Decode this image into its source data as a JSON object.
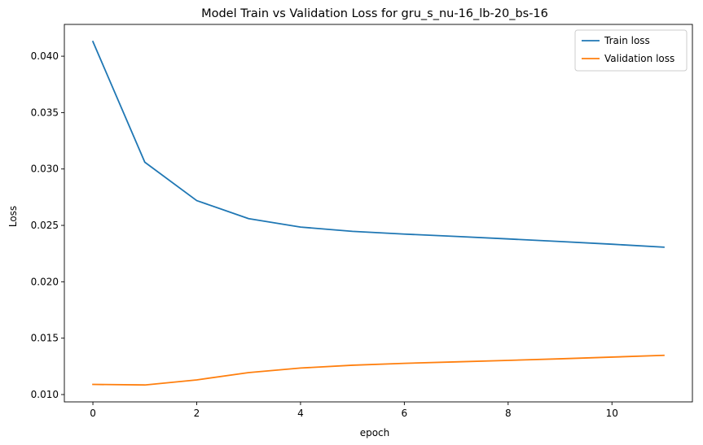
{
  "chart_data": {
    "type": "line",
    "title": "Model Train vs Validation Loss for gru_s_nu-16_lb-20_bs-16",
    "xlabel": "epoch",
    "ylabel": "Loss",
    "x": [
      0,
      1,
      2,
      3,
      4,
      5,
      6,
      7,
      8,
      9,
      10,
      11
    ],
    "xlim": [
      -0.55,
      11.55
    ],
    "ylim": [
      0.00935,
      0.04282
    ],
    "xticks": [
      0,
      2,
      4,
      6,
      8,
      10
    ],
    "xtick_labels": [
      "0",
      "2",
      "4",
      "6",
      "8",
      "10"
    ],
    "yticks": [
      0.01,
      0.015,
      0.02,
      0.025,
      0.03,
      0.035,
      0.04
    ],
    "ytick_labels": [
      "0.010",
      "0.015",
      "0.020",
      "0.025",
      "0.030",
      "0.035",
      "0.040"
    ],
    "grid": false,
    "legend": "upper right",
    "series": [
      {
        "name": "Train loss",
        "color": "#1f77b4",
        "values": [
          0.0413,
          0.0306,
          0.0272,
          0.0256,
          0.02485,
          0.02447,
          0.02423,
          0.02402,
          0.0238,
          0.02357,
          0.02333,
          0.02307
        ]
      },
      {
        "name": "Validation loss",
        "color": "#ff7f0e",
        "values": [
          0.0109,
          0.01085,
          0.0113,
          0.01195,
          0.01235,
          0.0126,
          0.01277,
          0.0129,
          0.01303,
          0.01317,
          0.01332,
          0.01348
        ]
      }
    ]
  }
}
